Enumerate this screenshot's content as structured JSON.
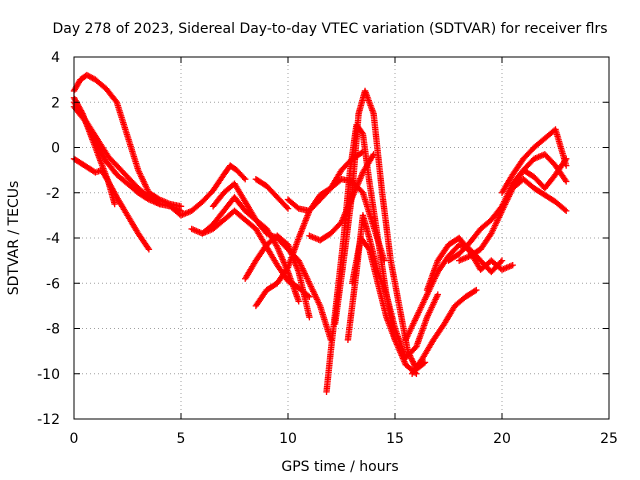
{
  "chart_data": {
    "type": "scatter",
    "title": "Day 278 of 2023, Sidereal Day-to-day VTEC variation (SDTVAR) for receiver flrs",
    "xlabel": "GPS time / hours",
    "ylabel": "SDTVAR / TECUs",
    "xlim": [
      0,
      25
    ],
    "ylim": [
      -12,
      4
    ],
    "xticks": [
      0,
      5,
      10,
      15,
      20,
      25
    ],
    "yticks": [
      4,
      2,
      0,
      -2,
      -4,
      -6,
      -8,
      -10,
      -12
    ],
    "grid": true,
    "marker": "plus",
    "color": "#ff0000",
    "series": [
      {
        "x": [
          0.0,
          0.3,
          0.6,
          1.0,
          1.5,
          2.0,
          2.5,
          3.0,
          3.5,
          4.0,
          4.5,
          5.0
        ],
        "y": [
          2.5,
          3.0,
          3.2,
          3.0,
          2.6,
          2.0,
          0.5,
          -1.0,
          -2.0,
          -2.3,
          -2.5,
          -2.6
        ]
      },
      {
        "x": [
          0.0,
          0.4,
          0.8,
          1.2,
          1.6,
          2.0,
          2.5,
          3.0,
          3.5
        ],
        "y": [
          2.2,
          1.5,
          0.5,
          -0.5,
          -1.5,
          -2.2,
          -3.0,
          -3.8,
          -4.5
        ]
      },
      {
        "x": [
          0.0,
          0.5,
          1.0,
          1.5,
          2.0,
          2.5,
          3.0,
          3.5,
          4.0,
          4.5,
          5.0
        ],
        "y": [
          1.8,
          1.2,
          0.3,
          -0.6,
          -1.2,
          -1.6,
          -2.0,
          -2.3,
          -2.5,
          -2.6,
          -2.8
        ]
      },
      {
        "x": [
          0.0,
          0.4,
          0.8,
          1.2,
          1.6,
          2.0,
          2.5,
          3.0,
          3.5,
          4.0
        ],
        "y": [
          2.0,
          1.4,
          0.8,
          0.2,
          -0.4,
          -0.8,
          -1.3,
          -1.8,
          -2.2,
          -2.5
        ]
      },
      {
        "x": [
          0.0,
          0.5,
          1.0,
          1.3,
          1.6,
          1.9
        ],
        "y": [
          -0.5,
          -0.8,
          -1.1,
          -1.0,
          -1.5,
          -2.5
        ]
      },
      {
        "x": [
          4.5,
          5.0,
          5.5,
          6.0,
          6.5,
          7.0,
          7.3,
          7.6,
          8.0
        ],
        "y": [
          -2.6,
          -3.0,
          -2.8,
          -2.4,
          -1.9,
          -1.2,
          -0.8,
          -1.0,
          -1.4
        ]
      },
      {
        "x": [
          5.5,
          6.0,
          6.5,
          7.0,
          7.5,
          8.0,
          8.5,
          9.0,
          9.5,
          10.0,
          10.5,
          11.0
        ],
        "y": [
          -3.6,
          -3.8,
          -3.6,
          -3.2,
          -2.8,
          -3.2,
          -3.6,
          -4.4,
          -5.2,
          -5.9,
          -6.2,
          -6.6
        ]
      },
      {
        "x": [
          6.0,
          6.5,
          7.0,
          7.5,
          8.0,
          8.5,
          9.0,
          9.5,
          10.0,
          10.5,
          11.0,
          11.5,
          12.0
        ],
        "y": [
          -3.8,
          -3.4,
          -2.8,
          -2.2,
          -2.8,
          -3.2,
          -3.8,
          -4.0,
          -4.5,
          -5.0,
          -6.0,
          -7.0,
          -8.5
        ]
      },
      {
        "x": [
          6.5,
          7.0,
          7.5,
          8.0,
          8.5,
          9.0,
          9.5,
          10.0,
          10.5
        ],
        "y": [
          -2.6,
          -2.0,
          -1.6,
          -2.4,
          -3.2,
          -3.6,
          -4.4,
          -5.5,
          -6.8
        ]
      },
      {
        "x": [
          8.0,
          8.5,
          9.0,
          9.5,
          10.0,
          10.5,
          11.0
        ],
        "y": [
          -5.8,
          -5.0,
          -4.3,
          -3.9,
          -4.3,
          -5.5,
          -7.5
        ]
      },
      {
        "x": [
          8.5,
          9.0,
          9.5,
          10.0,
          10.5,
          11.0,
          11.5,
          12.0,
          12.5,
          13.0,
          13.5
        ],
        "y": [
          -7.0,
          -6.3,
          -6.0,
          -5.3,
          -4.0,
          -2.8,
          -2.3,
          -1.8,
          -1.0,
          -0.5,
          -0.2
        ]
      },
      {
        "x": [
          8.5,
          9.0,
          9.5,
          10.0
        ],
        "y": [
          -1.4,
          -1.7,
          -2.2,
          -2.7
        ]
      },
      {
        "x": [
          10.0,
          10.5,
          11.0,
          11.5,
          12.0,
          12.5,
          13.0,
          13.5,
          14.0,
          14.5
        ],
        "y": [
          -2.3,
          -2.7,
          -2.8,
          -2.1,
          -1.8,
          -1.4,
          -1.5,
          -2.0,
          -3.5,
          -5.0
        ]
      },
      {
        "x": [
          11.0,
          11.5,
          12.0,
          12.5,
          13.0,
          13.5,
          14.0
        ],
        "y": [
          -3.9,
          -4.1,
          -3.8,
          -3.3,
          -2.2,
          -1.1,
          -0.3
        ]
      },
      {
        "x": [
          11.8,
          12.0,
          12.3,
          12.6,
          12.9,
          13.2,
          13.5,
          13.8,
          14.2,
          14.6,
          15.0,
          15.5,
          16.0
        ],
        "y": [
          -10.8,
          -9.0,
          -6.5,
          -4.0,
          -1.0,
          1.0,
          0.6,
          -1.5,
          -4.0,
          -6.5,
          -8.5,
          -9.6,
          -10.0
        ]
      },
      {
        "x": [
          12.2,
          12.6,
          13.0,
          13.3,
          13.6,
          14.0,
          14.4,
          14.8,
          15.2,
          15.6,
          16.0,
          16.4
        ],
        "y": [
          -7.8,
          -5.0,
          -2.0,
          1.5,
          2.5,
          1.5,
          -2.0,
          -5.0,
          -7.0,
          -9.0,
          -9.8,
          -9.5
        ]
      },
      {
        "x": [
          12.8,
          13.2,
          13.5,
          13.8,
          14.2,
          14.6,
          15.0,
          15.5,
          16.0,
          16.5,
          17.0
        ],
        "y": [
          -8.5,
          -5.5,
          -3.0,
          -4.0,
          -5.5,
          -6.5,
          -8.0,
          -9.3,
          -8.8,
          -7.5,
          -6.5
        ]
      },
      {
        "x": [
          13.0,
          13.4,
          13.8,
          14.2,
          14.6,
          15.0
        ],
        "y": [
          -6.0,
          -4.0,
          -4.5,
          -6.0,
          -7.5,
          -8.5
        ]
      },
      {
        "x": [
          15.5,
          16.0,
          16.5,
          17.0,
          17.5,
          18.0,
          18.5,
          19.0,
          19.5,
          20.0
        ],
        "y": [
          -8.5,
          -7.5,
          -6.5,
          -5.5,
          -4.8,
          -4.3,
          -4.5,
          -5.0,
          -5.5,
          -5.0
        ]
      },
      {
        "x": [
          16.5,
          17.0,
          17.5,
          18.0,
          18.5,
          19.0,
          19.5,
          20.0,
          20.5
        ],
        "y": [
          -6.3,
          -5.0,
          -4.3,
          -4.0,
          -4.6,
          -5.4,
          -5.0,
          -5.4,
          -5.2
        ]
      },
      {
        "x": [
          15.8,
          16.3,
          16.8,
          17.3,
          17.8,
          18.3,
          18.8
        ],
        "y": [
          -10.0,
          -9.3,
          -8.5,
          -7.8,
          -7.0,
          -6.6,
          -6.3
        ]
      },
      {
        "x": [
          17.5,
          18.0,
          18.5,
          19.0,
          19.5,
          20.0,
          20.5,
          21.0,
          21.5,
          22.0,
          22.5,
          23.0
        ],
        "y": [
          -5.0,
          -4.7,
          -4.2,
          -3.6,
          -3.2,
          -2.6,
          -1.6,
          -1.0,
          -0.5,
          -0.3,
          -0.8,
          -1.5
        ]
      },
      {
        "x": [
          18.0,
          18.5,
          19.0,
          19.5,
          20.0,
          20.5,
          21.0,
          21.5,
          22.0,
          22.5,
          23.0
        ],
        "y": [
          -5.0,
          -4.8,
          -4.5,
          -3.8,
          -2.8,
          -1.8,
          -1.4,
          -1.8,
          -2.1,
          -2.4,
          -2.8
        ]
      },
      {
        "x": [
          20.0,
          20.5,
          21.0,
          21.5,
          22.0,
          22.5,
          23.0
        ],
        "y": [
          -2.0,
          -1.2,
          -0.5,
          0.0,
          0.4,
          0.8,
          -0.8
        ]
      },
      {
        "x": [
          20.5,
          21.0,
          21.5,
          22.0,
          22.5,
          23.0
        ],
        "y": [
          -1.8,
          -1.0,
          -1.3,
          -1.8,
          -1.2,
          -0.5
        ]
      }
    ]
  }
}
